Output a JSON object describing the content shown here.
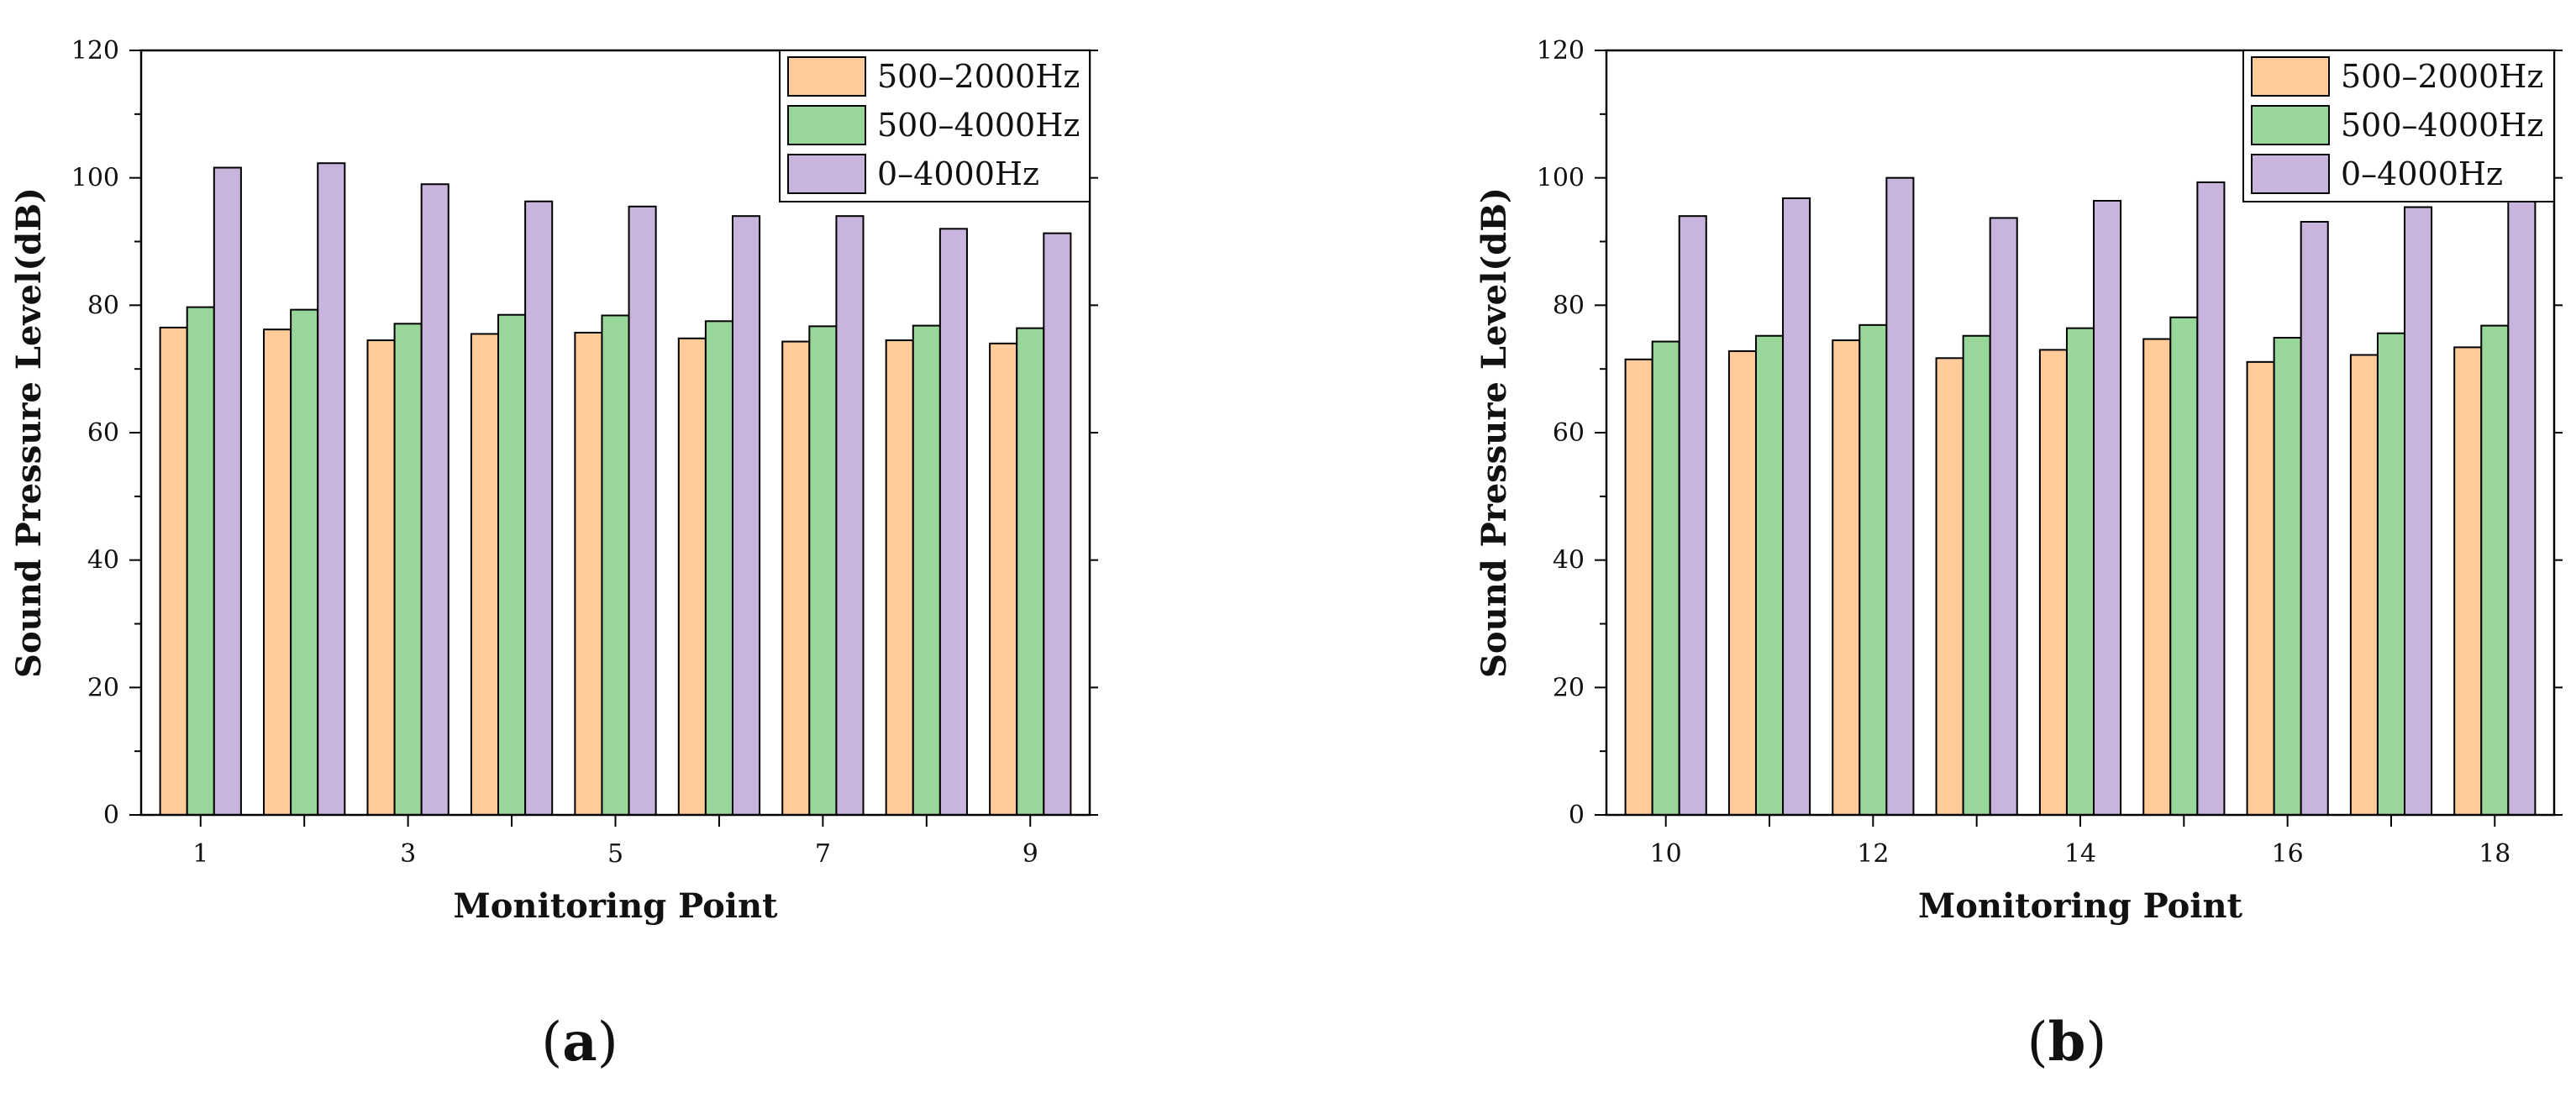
{
  "figure": {
    "panel_labels": [
      {
        "open": "(",
        "letter": "a",
        "close": ")"
      },
      {
        "open": "(",
        "letter": "b",
        "close": ")"
      }
    ]
  },
  "chart_data": [
    {
      "type": "bar",
      "panel": "a",
      "title": "",
      "xlabel": "Monitoring Point",
      "ylabel": "Sound Pressure Level(dB)",
      "ylim": [
        0,
        120
      ],
      "yticks": [
        0,
        20,
        40,
        60,
        80,
        100,
        120
      ],
      "categories": [
        "1",
        "2",
        "3",
        "4",
        "5",
        "6",
        "7",
        "8",
        "9"
      ],
      "xtick_labels": [
        "1",
        "",
        "3",
        "",
        "5",
        "",
        "7",
        "",
        "9"
      ],
      "legend_position": "top-right",
      "series": [
        {
          "name": "500–2000Hz",
          "color": "#FFCC99",
          "values": [
            76.5,
            76.2,
            74.5,
            75.5,
            75.7,
            74.8,
            74.3,
            74.5,
            74.0
          ]
        },
        {
          "name": "500–4000Hz",
          "color": "#99D699",
          "values": [
            79.7,
            79.3,
            77.1,
            78.5,
            78.4,
            77.5,
            76.7,
            76.8,
            76.4
          ]
        },
        {
          "name": "0–4000Hz",
          "color": "#C8B4DC",
          "values": [
            101.6,
            102.3,
            99.0,
            96.3,
            95.5,
            94.0,
            94.0,
            92.0,
            91.3
          ]
        }
      ]
    },
    {
      "type": "bar",
      "panel": "b",
      "title": "",
      "xlabel": "Monitoring Point",
      "ylabel": "Sound Pressure Level(dB)",
      "ylim": [
        0,
        120
      ],
      "yticks": [
        0,
        20,
        40,
        60,
        80,
        100,
        120
      ],
      "categories": [
        "10",
        "11",
        "12",
        "13",
        "14",
        "15",
        "16",
        "17",
        "18"
      ],
      "xtick_labels": [
        "10",
        "",
        "12",
        "",
        "14",
        "",
        "16",
        "",
        "18"
      ],
      "legend_position": "top-right",
      "series": [
        {
          "name": "500–2000Hz",
          "color": "#FFCC99",
          "values": [
            71.5,
            72.8,
            74.5,
            71.7,
            73.0,
            74.7,
            71.1,
            72.2,
            73.4
          ]
        },
        {
          "name": "500–4000Hz",
          "color": "#99D699",
          "values": [
            74.3,
            75.2,
            76.9,
            75.2,
            76.4,
            78.1,
            74.9,
            75.6,
            76.8
          ]
        },
        {
          "name": "0–4000Hz",
          "color": "#C8B4DC",
          "values": [
            94.0,
            96.8,
            100.0,
            93.7,
            96.4,
            99.3,
            93.1,
            95.4,
            97.2
          ]
        }
      ]
    }
  ]
}
